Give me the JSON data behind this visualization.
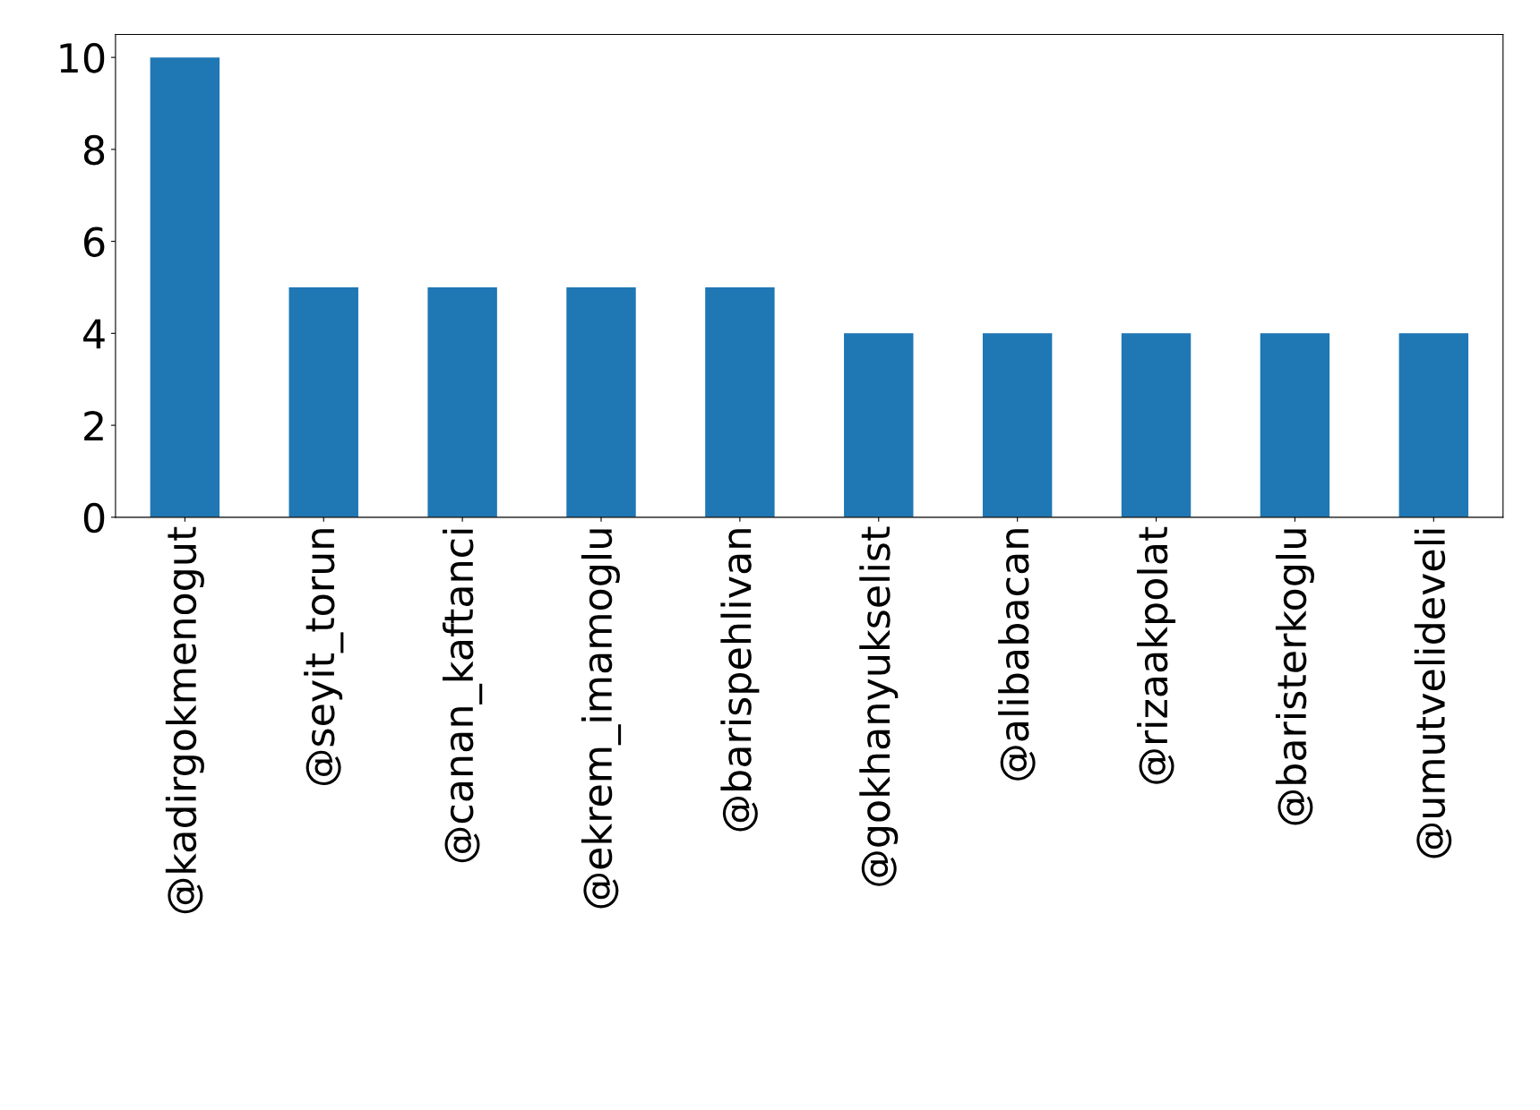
{
  "chart_data": {
    "type": "bar",
    "categories": [
      "@kadirgokmenogut",
      "@seyit_torun",
      "@canan_kaftanci",
      "@ekrem_imamoglu",
      "@barispehlivan",
      "@gokhanyukselist",
      "@alibabacan",
      "@rizaakpolat",
      "@baristerkoglu",
      "@umutvelideveli"
    ],
    "values": [
      10,
      5,
      5,
      5,
      5,
      4,
      4,
      4,
      4,
      4
    ],
    "color": "#1f77b4",
    "ylim": [
      0,
      10.5
    ],
    "yticks": [
      0,
      2,
      4,
      6,
      8,
      10
    ],
    "grid": false,
    "legend": false
  }
}
